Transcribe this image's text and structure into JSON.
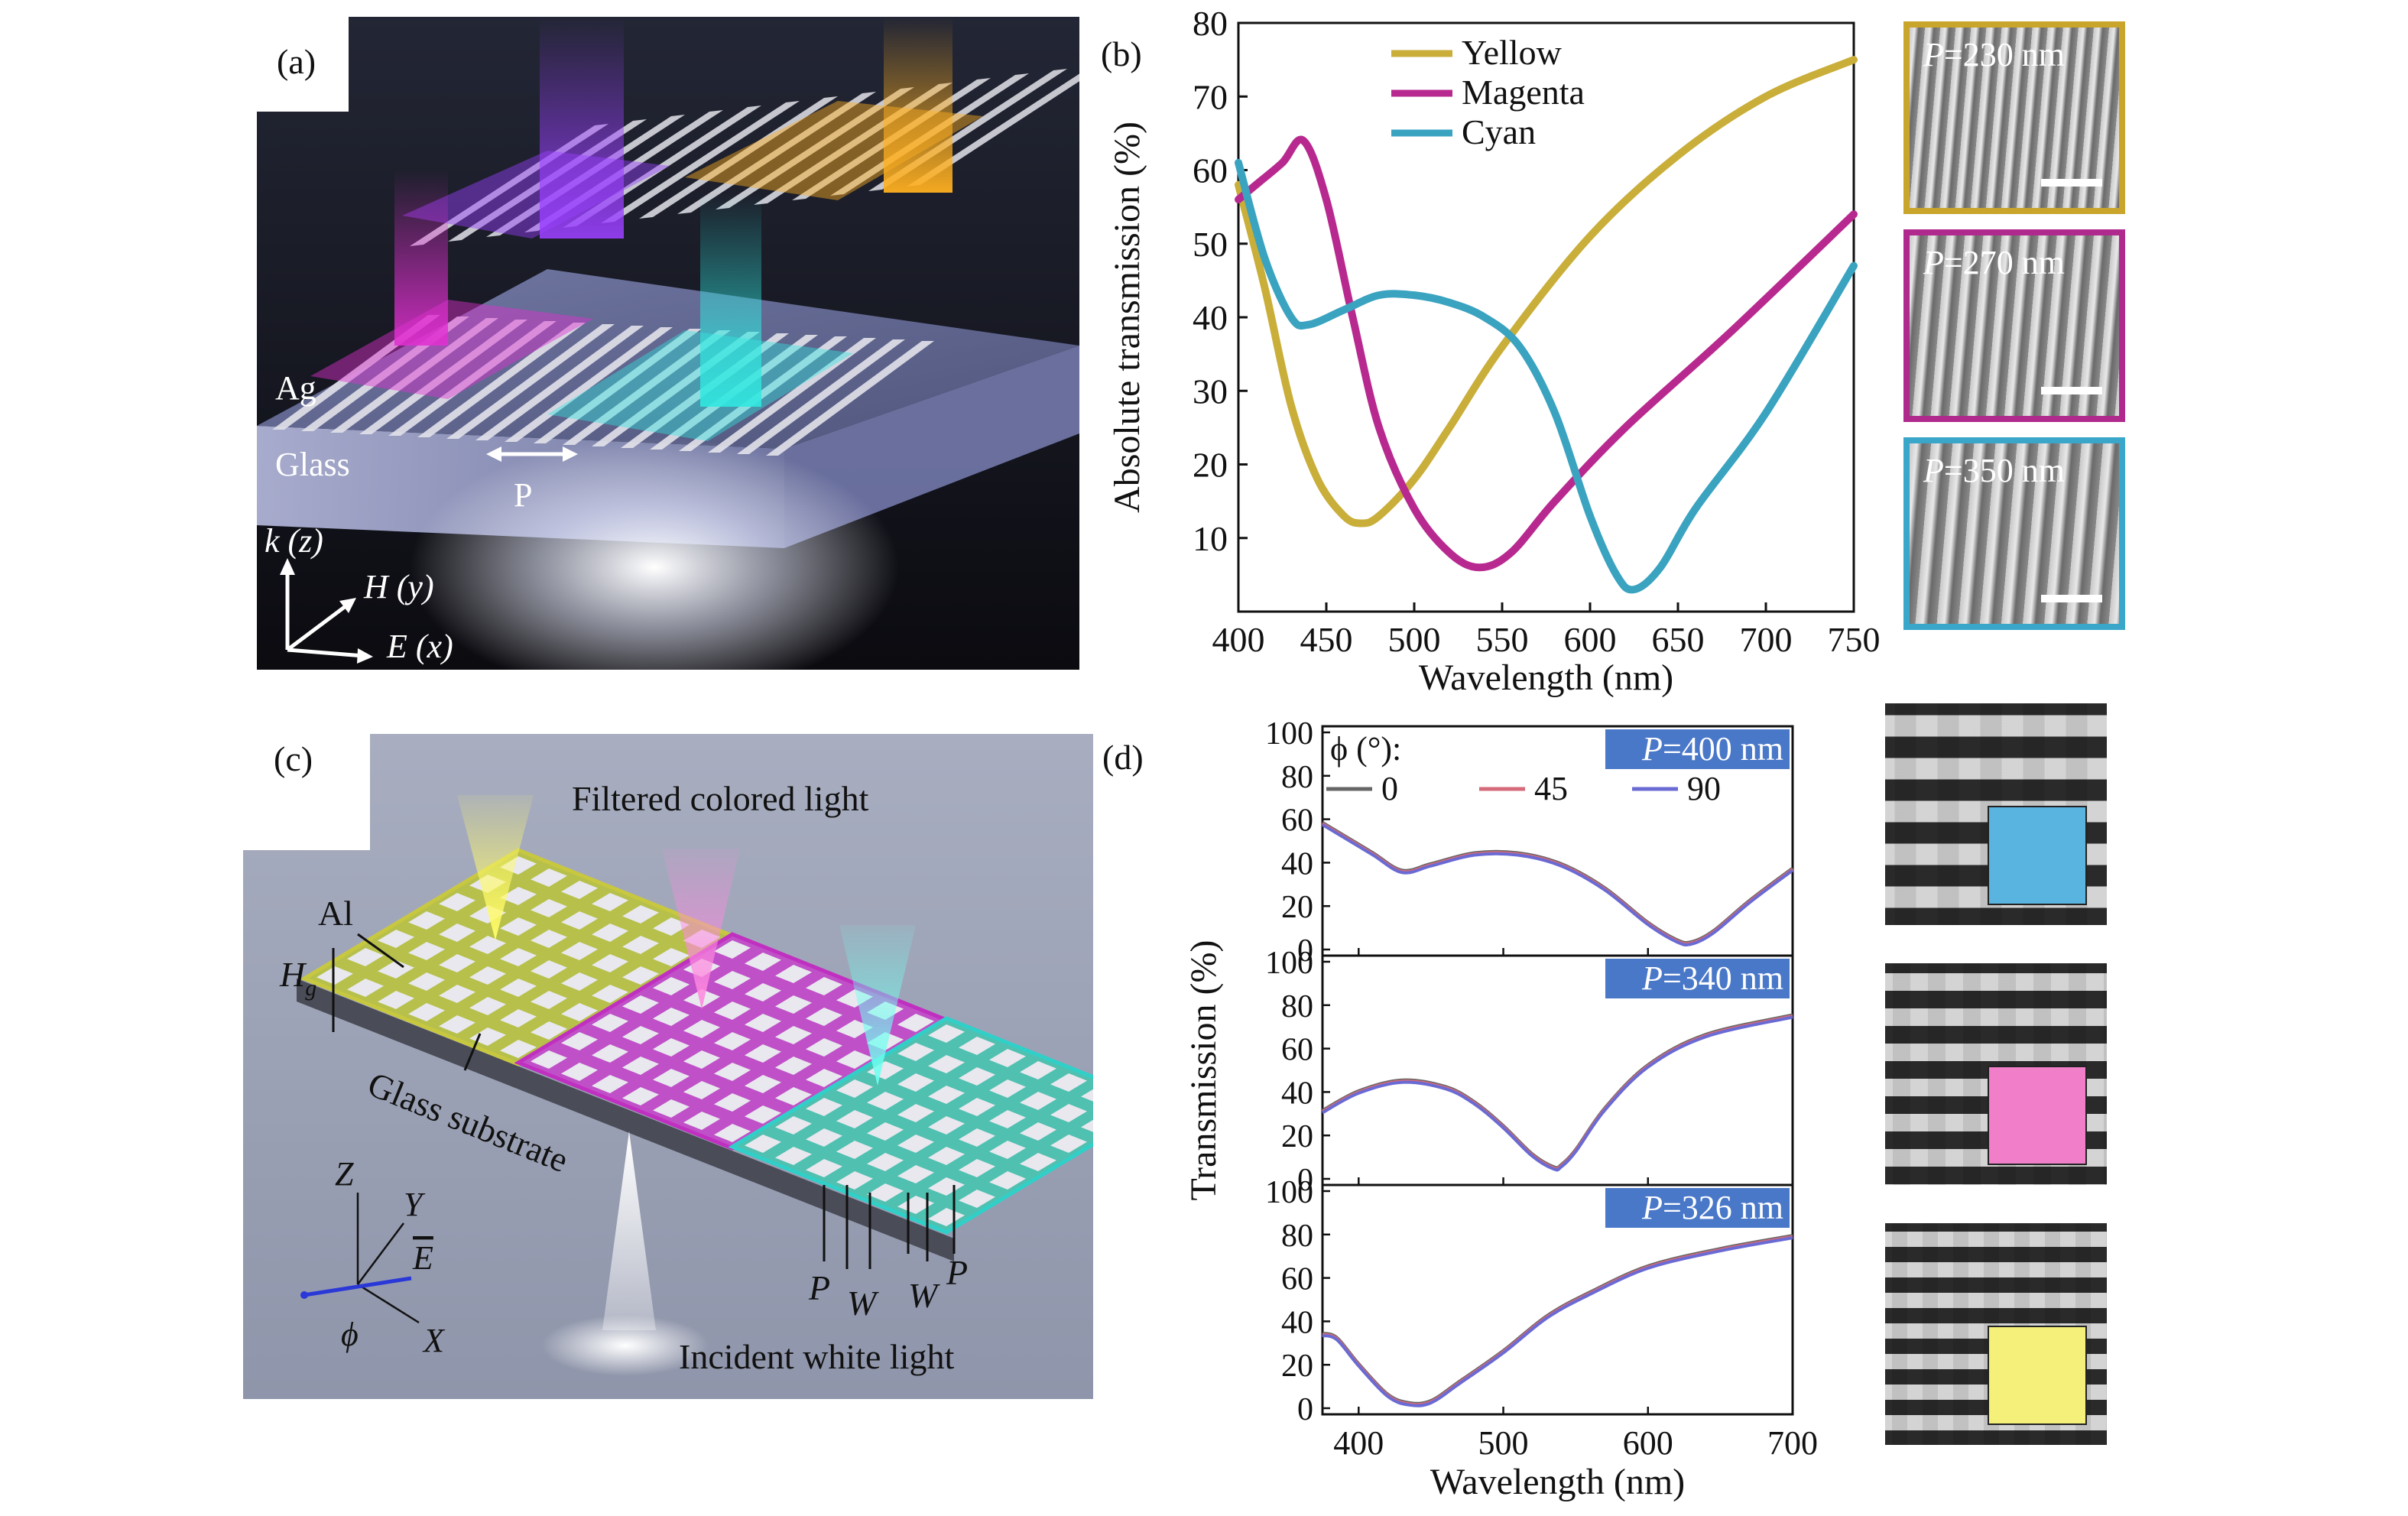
{
  "panels": {
    "a": {
      "label": "(a)",
      "ag_label": "Ag",
      "glass_label": "Glass",
      "period_label": "P",
      "axes": {
        "k": "k",
        "k_sub": " (z)",
        "h": "H",
        "h_sub": " (y)",
        "e": "E",
        "e_sub": " (x)"
      }
    },
    "b": {
      "label": "(b)"
    },
    "c": {
      "label": "(c)",
      "title_top": "Filtered colored light",
      "al_label": "Al",
      "hg_label": "H",
      "hg_sub": "g",
      "substrate_label": "Glass substrate",
      "incident_label": "Incident white light",
      "axes": {
        "z": "Z",
        "y": "Y",
        "x": "X",
        "e": "E",
        "phi": "ϕ"
      },
      "dims": {
        "p1": "P",
        "w1": "W",
        "w2": "W",
        "p2": "P"
      }
    },
    "d": {
      "label": "(d)",
      "legend_title": "ϕ (°):"
    }
  },
  "sem_b": [
    {
      "prefix": "P",
      "text": "=230 nm",
      "border": "#c9a52c"
    },
    {
      "prefix": "P",
      "text": "=270 nm",
      "border": "#b02a8e"
    },
    {
      "prefix": "P",
      "text": "=350 nm",
      "border": "#3aa6c9"
    }
  ],
  "sem_d_overlays": [
    "#5ab4e0",
    "#f07ec8",
    "#f5f07a"
  ],
  "colors": {
    "yellow": "#c9ae3a",
    "magenta": "#b8298f",
    "cyan": "#3aa3c0",
    "p0": "#666666",
    "p45": "#d46a7a",
    "p90": "#6a6ad4",
    "tagbg": "#4a78c8"
  },
  "chart_data": [
    {
      "type": "line",
      "panel": "b",
      "xlabel": "Wavelength (nm)",
      "ylabel": "Absolute transmission (%)",
      "xlim": [
        400,
        750
      ],
      "ylim": [
        0,
        80
      ],
      "xticks": [
        400,
        450,
        500,
        550,
        600,
        650,
        700,
        750
      ],
      "yticks": [
        10,
        20,
        30,
        40,
        50,
        60,
        70,
        80
      ],
      "legend": "top-left",
      "series": [
        {
          "name": "Yellow",
          "color": "#c9ae3a",
          "x": [
            400,
            415,
            430,
            445,
            460,
            470,
            480,
            500,
            520,
            550,
            600,
            650,
            700,
            750
          ],
          "y": [
            58,
            44,
            28,
            18,
            13,
            12,
            13,
            18,
            25,
            36,
            51,
            62,
            70,
            75
          ]
        },
        {
          "name": "Magenta",
          "color": "#b8298f",
          "x": [
            400,
            410,
            425,
            437,
            450,
            465,
            480,
            500,
            520,
            537,
            555,
            580,
            620,
            680,
            750
          ],
          "y": [
            56,
            58,
            61,
            64,
            56,
            40,
            25,
            14,
            8,
            6,
            8,
            15,
            25,
            38,
            54
          ]
        },
        {
          "name": "Cyan",
          "color": "#3aa3c0",
          "x": [
            400,
            415,
            430,
            440,
            460,
            480,
            500,
            520,
            540,
            560,
            580,
            600,
            615,
            625,
            640,
            660,
            700,
            750
          ],
          "y": [
            61,
            48,
            40,
            39,
            41,
            43,
            43,
            42,
            40,
            36,
            27,
            13,
            5,
            3,
            6,
            14,
            27,
            47
          ]
        }
      ]
    },
    {
      "type": "line",
      "panel": "d",
      "xlabel": "Wavelength (nm)",
      "ylabel": "Transmission (%)",
      "xlim": [
        375,
        700
      ],
      "ylim": [
        0,
        100
      ],
      "xticks": [
        400,
        500,
        600,
        700
      ],
      "yticks": [
        0,
        20,
        40,
        60,
        80,
        100
      ],
      "legend_entries": [
        {
          "name": "0",
          "color": "#666666"
        },
        {
          "name": "45",
          "color": "#d46a7a"
        },
        {
          "name": "90",
          "color": "#6a6ad4"
        }
      ],
      "subplots": [
        {
          "tag_prefix": "P",
          "tag": "=400 nm",
          "x": [
            375,
            390,
            410,
            430,
            450,
            480,
            510,
            540,
            570,
            600,
            620,
            630,
            645,
            670,
            700
          ],
          "y": [
            58,
            52,
            44,
            36,
            39,
            44,
            44,
            39,
            28,
            12,
            4,
            3,
            8,
            22,
            37
          ]
        },
        {
          "tag_prefix": "P",
          "tag": "=340 nm",
          "x": [
            375,
            400,
            430,
            460,
            480,
            500,
            520,
            535,
            540,
            550,
            570,
            600,
            640,
            700
          ],
          "y": [
            31,
            40,
            45,
            42,
            35,
            24,
            11,
            5,
            6,
            13,
            32,
            52,
            66,
            75
          ]
        },
        {
          "tag_prefix": "P",
          "tag": "=326 nm",
          "x": [
            375,
            385,
            400,
            420,
            435,
            450,
            470,
            500,
            530,
            560,
            600,
            650,
            700
          ],
          "y": [
            34,
            32,
            20,
            6,
            2,
            3,
            12,
            26,
            42,
            53,
            65,
            73,
            79
          ]
        }
      ]
    }
  ]
}
